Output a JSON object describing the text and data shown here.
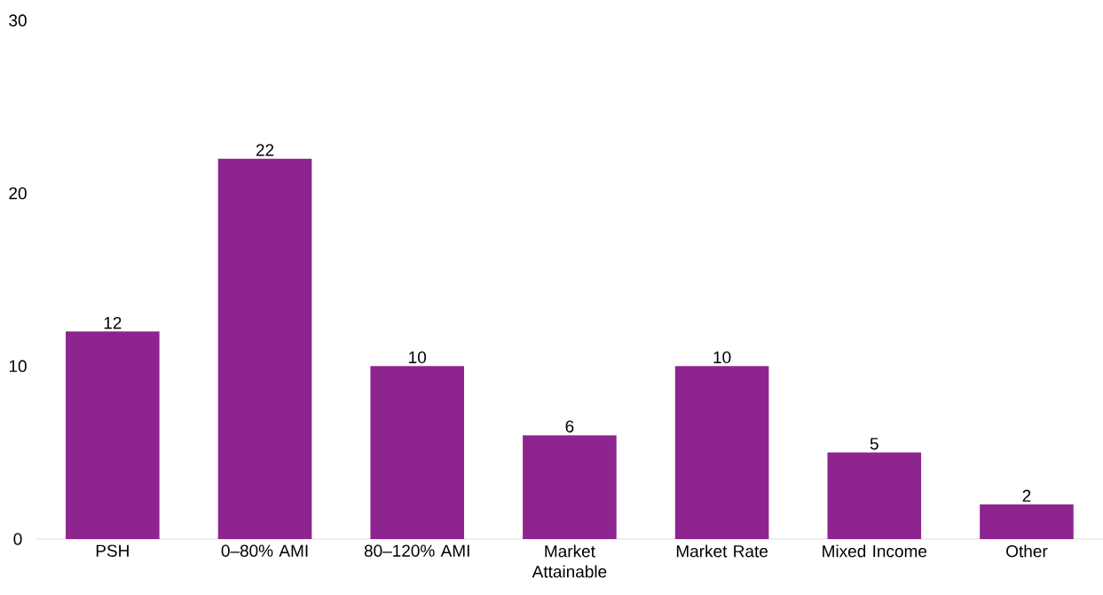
{
  "chart_data": {
    "type": "bar",
    "categories": [
      "PSH",
      "0–80% AMI",
      "80–120% AMI",
      "Market Attainable",
      "Market Rate",
      "Mixed Income",
      "Other"
    ],
    "values": [
      12,
      22,
      10,
      6,
      10,
      5,
      2
    ],
    "color": "#8e248e",
    "ylim": [
      0,
      30
    ],
    "yticks": [
      0,
      10,
      20,
      30
    ],
    "data_labels": true,
    "grid": false
  }
}
